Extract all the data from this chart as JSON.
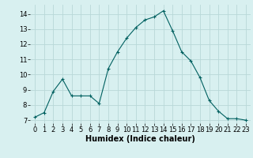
{
  "x": [
    0,
    1,
    2,
    3,
    4,
    5,
    6,
    7,
    8,
    9,
    10,
    11,
    12,
    13,
    14,
    15,
    16,
    17,
    18,
    19,
    20,
    21,
    22,
    23
  ],
  "y": [
    7.2,
    7.5,
    8.9,
    9.7,
    8.6,
    8.6,
    8.6,
    8.1,
    10.4,
    11.5,
    12.4,
    13.1,
    13.6,
    13.8,
    14.2,
    12.9,
    11.5,
    10.9,
    9.8,
    8.3,
    7.6,
    7.1,
    7.1,
    7.0
  ],
  "line_color": "#006060",
  "marker": "+",
  "marker_size": 3,
  "background_color": "#d8f0f0",
  "grid_color": "#b8d8d8",
  "xlabel": "Humidex (Indice chaleur)",
  "xlabel_fontsize": 7,
  "tick_fontsize": 6,
  "ylim": [
    6.8,
    14.6
  ],
  "xlim": [
    -0.5,
    23.5
  ],
  "yticks": [
    7,
    8,
    9,
    10,
    11,
    12,
    13,
    14
  ],
  "xticks": [
    0,
    1,
    2,
    3,
    4,
    5,
    6,
    7,
    8,
    9,
    10,
    11,
    12,
    13,
    14,
    15,
    16,
    17,
    18,
    19,
    20,
    21,
    22,
    23
  ]
}
